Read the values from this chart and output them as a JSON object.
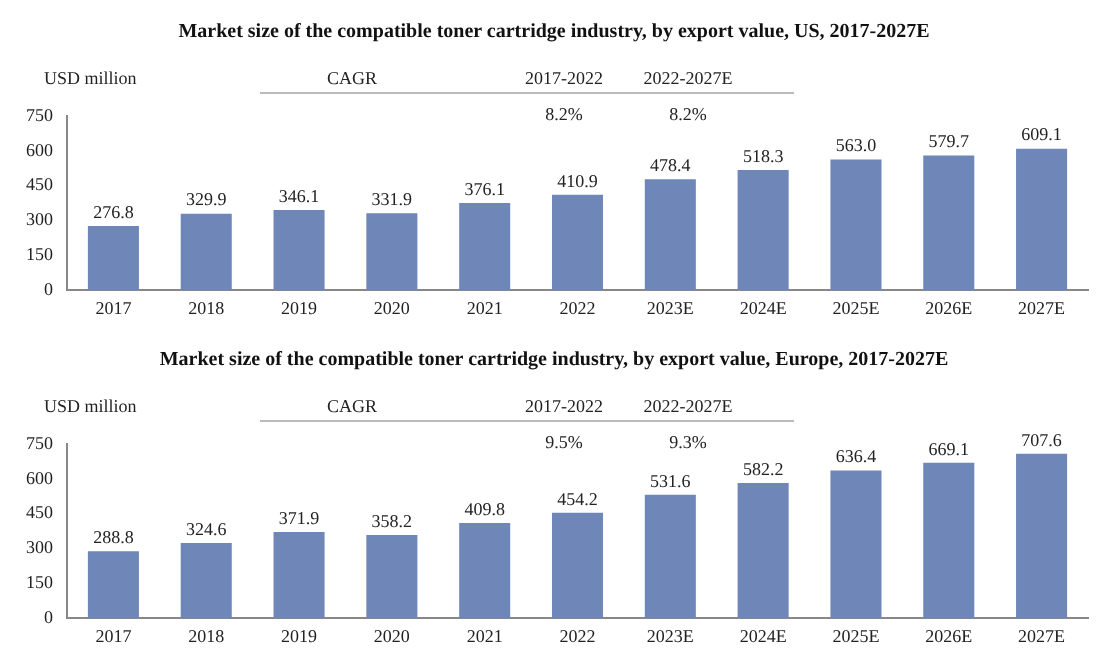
{
  "chart_data": [
    {
      "type": "bar",
      "title": "Market size of the compatible toner cartridge industry, by export value, US, 2017-2027E",
      "ylabel": "USD million",
      "categories": [
        "2017",
        "2018",
        "2019",
        "2020",
        "2021",
        "2022",
        "2023E",
        "2024E",
        "2025E",
        "2026E",
        "2027E"
      ],
      "values": [
        276.8,
        329.9,
        346.1,
        331.9,
        376.1,
        410.9,
        478.4,
        518.3,
        563.0,
        579.7,
        609.1
      ],
      "value_labels": [
        "276.8",
        "329.9",
        "346.1",
        "331.9",
        "376.1",
        "410.9",
        "478.4",
        "518.3",
        "563.0",
        "579.7",
        "609.1"
      ],
      "color": "#6f86b8",
      "ylim": [
        0,
        750
      ],
      "yticks": [
        0,
        150,
        300,
        450,
        600,
        750
      ],
      "grid": false,
      "annotations": [
        "CAGR",
        "2017-2022",
        "2022-2027E",
        "8.2%",
        "8.2%"
      ]
    },
    {
      "type": "bar",
      "title": "Market size of the compatible toner cartridge industry, by export value, Europe, 2017-2027E",
      "ylabel": "USD million",
      "categories": [
        "2017",
        "2018",
        "2019",
        "2020",
        "2021",
        "2022",
        "2023E",
        "2024E",
        "2025E",
        "2026E",
        "2027E"
      ],
      "values": [
        288.8,
        324.6,
        371.9,
        358.2,
        409.8,
        454.2,
        531.6,
        582.2,
        636.4,
        669.1,
        707.6
      ],
      "data_labels": true,
      "color": "#6f86b8",
      "ylim": [
        0,
        750
      ],
      "yticks": [
        0,
        150,
        300,
        450,
        600,
        750
      ],
      "grid": false,
      "annotations": [
        "CAGR",
        "2017-2022",
        "2022-2027E",
        "9.5%",
        "9.3%"
      ]
    }
  ]
}
